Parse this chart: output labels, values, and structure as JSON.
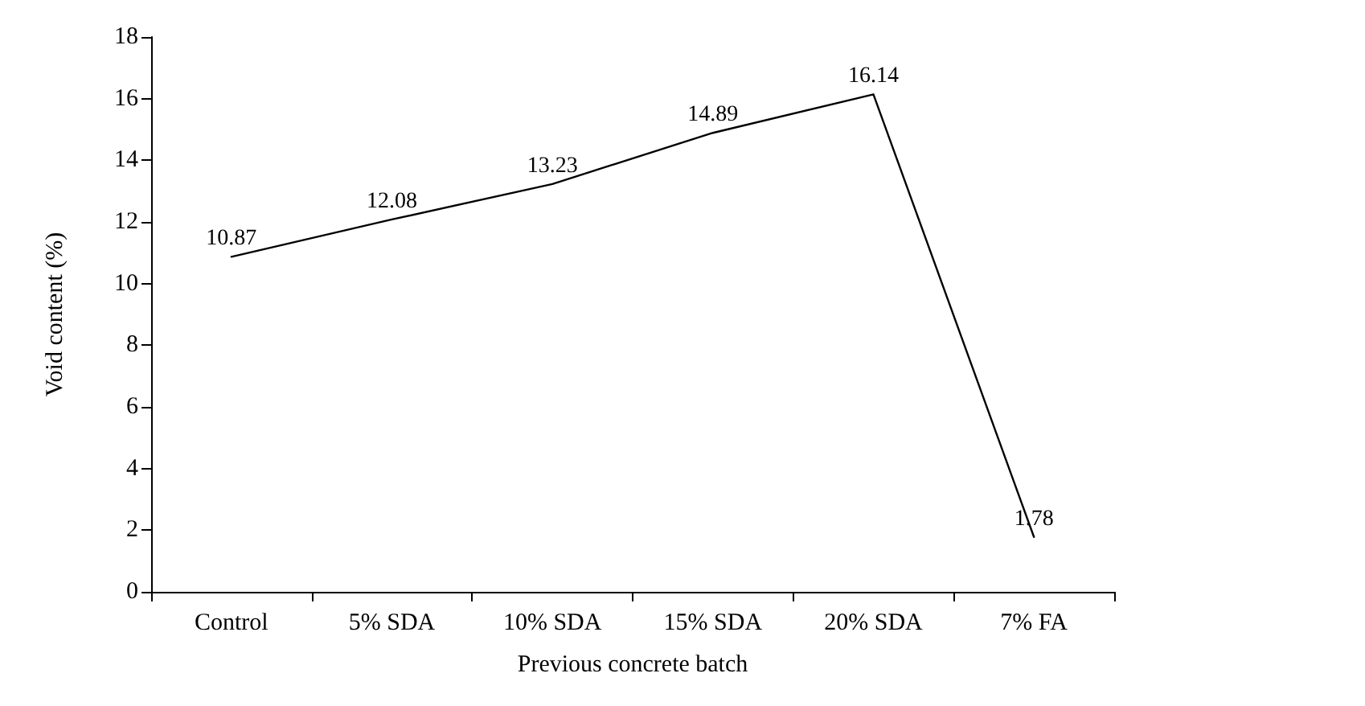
{
  "chart_data": {
    "type": "line",
    "xlabel": "Previous concrete batch",
    "ylabel": "Void content (%)",
    "categories": [
      "Control",
      "5% SDA",
      "10% SDA",
      "15% SDA",
      "20% SDA",
      "7% FA"
    ],
    "series": [
      {
        "color": "#000000",
        "values": [
          10.87,
          12.08,
          13.23,
          14.89,
          16.14,
          1.78
        ]
      }
    ],
    "ylim": [
      0,
      18
    ],
    "yticks": [
      0,
      2,
      4,
      6,
      8,
      10,
      12,
      14,
      16,
      18
    ],
    "grid": false,
    "marker": "none",
    "line_style": "solid",
    "data_labels": true
  }
}
